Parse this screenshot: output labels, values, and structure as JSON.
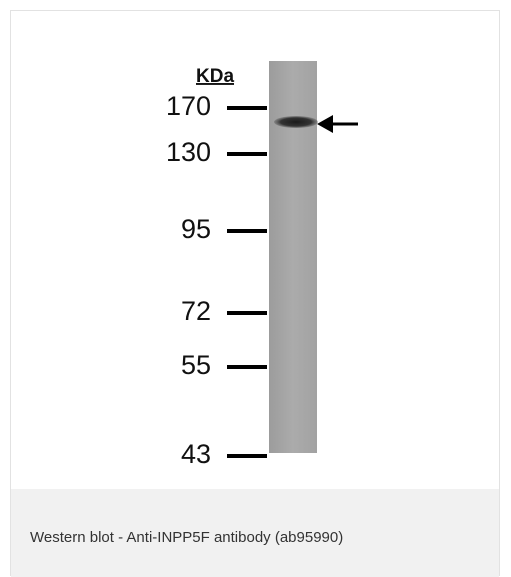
{
  "blot": {
    "unit_label": "KDa",
    "markers": [
      "170",
      "130",
      "95",
      "72",
      "55",
      "43"
    ]
  },
  "caption": "Western blot - Anti-INPP5F antibody (ab95990)"
}
